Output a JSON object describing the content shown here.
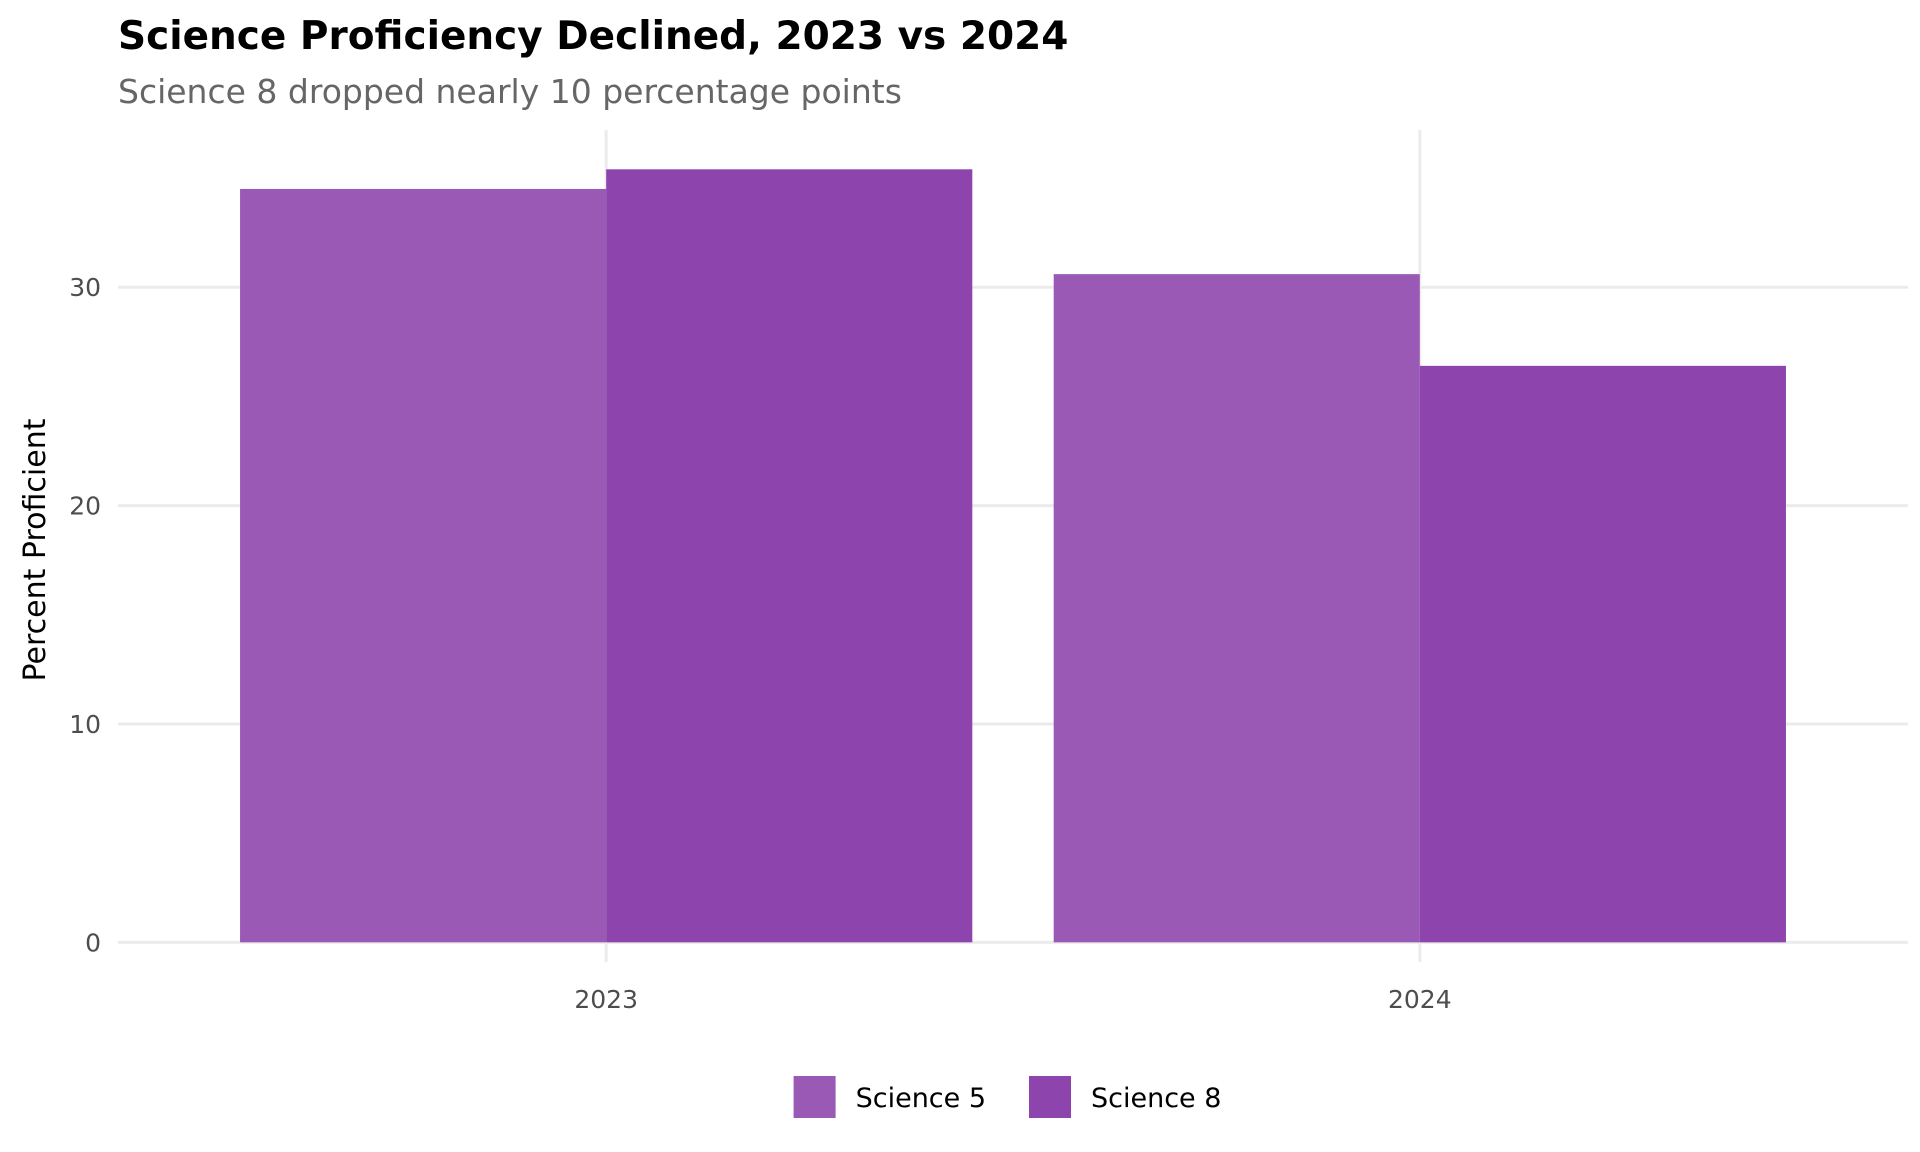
{
  "chart_data": {
    "type": "bar",
    "title": "Science Proficiency Declined, 2023 vs 2024",
    "subtitle": "Science 8 dropped nearly 10 percentage points",
    "xlabel": "",
    "ylabel": "Percent Proficient",
    "categories": [
      "2023",
      "2024"
    ],
    "series": [
      {
        "name": "Science 5",
        "values": [
          34.5,
          30.6
        ],
        "color": "#9b59b6"
      },
      {
        "name": "Science 8",
        "values": [
          35.4,
          26.4
        ],
        "color": "#8e44ad"
      }
    ],
    "ylim": [
      -0.9,
      37.2
    ],
    "yticks": [
      0,
      10,
      20,
      30
    ],
    "ytick_labels": [
      "0",
      "10",
      "20",
      "30"
    ],
    "grid": true,
    "legend_position": "bottom"
  }
}
